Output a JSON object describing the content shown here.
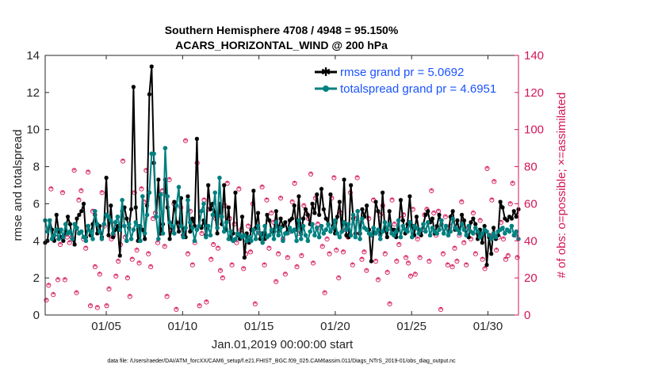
{
  "chart_data": {
    "type": "line",
    "title_line1": "Southern Hemisphere 4708 / 4948 = 95.150%",
    "title_line2": "ACARS_HORIZONTAL_WIND @ 200 hPa",
    "xlabel": "Jan.01,2019 00:00:00 start",
    "ylabel": "rmse and totalspread",
    "ylabel_right": "# of obs: o=possible; ×=assimilated",
    "footer": "data file: /Users/raeder/DAI/ATM_forcXX/CAM6_setup/f.e21.FHIST_BGC.f09_025.CAM6assim.011/Diags_NTrS_2019-01/obs_diag_output.nc",
    "xlim": [
      1.0,
      32.0
    ],
    "ylim": [
      0,
      14
    ],
    "ylim_right": [
      0,
      140
    ],
    "x_ticks": [
      5,
      10,
      15,
      20,
      25,
      30
    ],
    "x_tick_labels": [
      "01/05",
      "01/10",
      "01/15",
      "01/20",
      "01/25",
      "01/30"
    ],
    "y_ticks": [
      0,
      2,
      4,
      6,
      8,
      10,
      12,
      14
    ],
    "y_ticks_right": [
      0,
      20,
      40,
      60,
      80,
      100,
      120,
      140
    ],
    "legend_position": "top-right",
    "colors": {
      "rmse": "#000000",
      "totalspread": "#008080",
      "obs": "#d4145a",
      "legend_text": "#1a53ff"
    },
    "series": [
      {
        "name": "rmse",
        "legend": "rmse grand pr = 5.0692",
        "values": [
          3.9,
          4.0,
          5.1,
          4.6,
          4.0,
          5.4,
          4.5,
          4.2,
          4.0,
          4.5,
          5.3,
          4.9,
          4.1,
          3.8,
          5.2,
          5.4,
          5.6,
          6.0,
          4.2,
          4.8,
          4.3,
          4.9,
          5.4,
          4.4,
          4.8,
          4.2,
          4.9,
          7.4,
          4.3,
          5.9,
          4.2,
          4.6,
          4.8,
          3.2,
          5.6,
          5.8,
          5.2,
          4.7,
          5.7,
          12.3,
          5.8,
          4.0,
          4.8,
          4.6,
          4.1,
          5.9,
          11.9,
          13.4,
          8.2,
          5.3,
          7.3,
          4.4,
          4.9,
          7.3,
          5.8,
          4.1,
          4.7,
          6.1,
          5.0,
          4.5,
          6.3,
          4.3,
          4.2,
          6.4,
          4.5,
          5.2,
          4.8,
          9.5,
          4.8,
          4.7,
          5.1,
          4.3,
          7.0,
          5.7,
          6.0,
          5.5,
          4.4,
          6.0,
          4.9,
          7.0,
          4.6,
          5.8,
          4.1,
          4.4,
          6.6,
          4.3,
          4.1,
          5.3,
          3.1,
          4.4,
          3.9,
          4.6,
          6.7,
          4.7,
          5.5,
          4.1,
          4.4,
          4.1,
          5.4,
          5.1,
          4.5,
          4.5,
          5.6,
          4.5,
          5.2,
          4.8,
          5.0,
          4.5,
          5.1,
          5.2,
          5.9,
          4.6,
          6.4,
          4.4,
          5.2,
          5.7,
          5.4,
          4.9,
          6.0,
          5.5,
          6.5,
          5.4,
          6.8,
          5.7,
          5.2,
          4.9,
          6.5,
          4.8,
          4.4,
          5.3,
          6.1,
          4.5,
          7.3,
          4.3,
          4.2,
          7.0,
          5.2,
          4.4,
          5.6,
          4.4,
          5.7,
          5.3,
          5.9,
          4.6,
          2.9,
          4.5,
          6.1,
          5.6,
          4.3,
          6.6,
          4.6,
          4.2,
          5.6,
          4.6,
          4.6,
          4.2,
          4.6,
          6.2,
          5.1,
          4.4,
          4.9,
          6.4,
          4.8,
          4.3,
          5.3,
          4.6,
          4.3,
          4.9,
          5.4,
          5.6,
          5.0,
          5.2,
          4.4,
          4.8,
          5.4,
          4.9,
          4.4,
          4.8,
          4.3,
          5.3,
          5.6,
          4.6,
          5.1,
          4.4,
          5.4,
          5.1,
          4.3,
          4.2,
          5.0,
          5.2,
          4.9,
          4.1,
          4.6,
          3.9,
          4.8,
          2.7,
          4.2,
          3.3,
          4.7,
          4.1,
          4.3,
          6.1,
          5.8,
          5.2,
          5.1,
          5.3,
          5.2,
          5.6,
          5.3,
          5.7
        ]
      },
      {
        "name": "totalspread",
        "legend": "totalspread grand pr = 4.6951",
        "values": [
          5.1,
          4.5,
          5.1,
          4.1,
          4.3,
          4.6,
          4.1,
          4.6,
          4.2,
          4.9,
          4.4,
          4.5,
          4.1,
          4.9,
          4.7,
          4.4,
          4.5,
          4.2,
          4.0,
          4.8,
          4.5,
          4.1,
          5.6,
          4.9,
          4.5,
          4.1,
          4.9,
          5.4,
          5.3,
          5.1,
          4.4,
          5.0,
          5.3,
          4.6,
          6.2,
          4.8,
          4.0,
          4.9,
          4.1,
          4.6,
          5.0,
          4.8,
          4.0,
          6.4,
          4.4,
          5.4,
          6.6,
          8.7,
          8.7,
          5.3,
          4.1,
          6.5,
          4.4,
          9.0,
          6.4,
          5.0,
          4.8,
          4.4,
          5.9,
          6.9,
          4.8,
          4.2,
          4.7,
          6.2,
          5.0,
          4.7,
          4.0,
          4.6,
          4.8,
          5.6,
          6.0,
          4.2,
          4.8,
          4.3,
          5.4,
          6.6,
          4.7,
          7.4,
          5.3,
          4.5,
          5.0,
          4.1,
          4.5,
          4.0,
          4.1,
          4.4,
          4.3,
          4.2,
          4.3,
          4.0,
          4.2,
          4.0,
          4.6,
          4.1,
          4.8,
          4.4,
          3.9,
          4.8,
          4.2,
          4.3,
          4.6,
          4.1,
          5.0,
          4.3,
          4.7,
          4.0,
          4.4,
          4.4,
          4.7,
          4.5,
          4.6,
          4.0,
          5.1,
          4.1,
          4.8,
          4.3,
          4.0,
          4.5,
          4.9,
          4.3,
          4.7,
          4.2,
          4.8,
          4.4,
          4.6,
          4.9,
          4.5,
          4.7,
          5.1,
          4.4,
          4.2,
          4.5,
          5.0,
          4.6,
          4.9,
          4.3,
          5.4,
          4.2,
          5.6,
          4.1,
          5.2,
          4.7,
          4.6,
          4.4,
          4.3,
          4.7,
          4.4,
          4.6,
          4.1,
          4.5,
          5.0,
          4.6,
          4.9,
          4.4,
          4.3,
          4.5,
          5.1,
          4.2,
          4.8,
          4.6,
          4.5,
          5.0,
          4.2,
          4.8,
          4.7,
          4.4,
          4.6,
          4.9,
          4.5,
          5.0,
          4.3,
          4.7,
          4.5,
          4.4,
          4.6,
          5.1,
          4.4,
          4.8,
          4.3,
          4.5,
          5.2,
          4.7,
          4.6,
          4.4,
          4.9,
          4.6,
          4.3,
          4.8,
          4.5,
          4.4,
          4.7,
          4.5,
          4.2,
          4.4,
          4.6,
          4.5,
          4.3,
          4.1,
          4.4,
          4.2,
          4.5,
          4.6,
          4.7,
          4.4,
          4.6,
          4.5,
          4.8,
          4.3,
          4.5,
          4.1
        ]
      }
    ],
    "obs_possible": [
      8,
      16,
      68,
      11,
      42,
      19,
      38,
      66,
      19,
      42,
      39,
      42,
      78,
      12,
      62,
      67,
      41,
      36,
      77,
      5,
      56,
      26,
      4,
      22,
      66,
      48,
      5,
      14,
      41,
      43,
      21,
      29,
      38,
      83,
      42,
      20,
      10,
      30,
      66,
      35,
      28,
      68,
      61,
      78,
      33,
      26,
      52,
      55,
      39,
      44,
      67,
      37,
      10,
      73,
      46,
      60,
      3,
      49,
      58,
      43,
      94,
      33,
      56,
      27,
      39,
      82,
      5,
      44,
      62,
      7,
      57,
      30,
      38,
      52,
      36,
      24,
      20,
      59,
      71,
      52,
      27,
      49,
      39,
      68,
      46,
      25,
      33,
      48,
      34,
      60,
      6,
      46,
      44,
      69,
      27,
      62,
      36,
      55,
      50,
      18,
      33,
      63,
      41,
      22,
      31,
      45,
      61,
      71,
      26,
      44,
      32,
      59,
      55,
      52,
      76,
      28,
      63,
      49,
      47,
      37,
      12,
      41,
      33,
      63,
      74,
      35,
      20,
      55,
      34,
      46,
      42,
      66,
      27,
      52,
      74,
      44,
      30,
      34,
      24,
      52,
      43,
      62,
      29,
      19,
      54,
      59,
      33,
      23,
      6,
      62,
      49,
      29,
      38,
      52,
      54,
      31,
      28,
      21,
      57,
      22,
      41,
      31,
      46,
      54,
      57,
      29,
      67,
      55,
      43,
      56,
      3,
      33,
      53,
      27,
      48,
      26,
      36,
      29,
      43,
      61,
      39,
      27,
      47,
      41,
      55,
      33,
      44,
      51,
      30,
      25,
      79,
      43,
      62,
      72,
      35,
      42,
      50,
      41,
      30,
      32,
      60,
      71,
      43,
      31
    ]
  }
}
